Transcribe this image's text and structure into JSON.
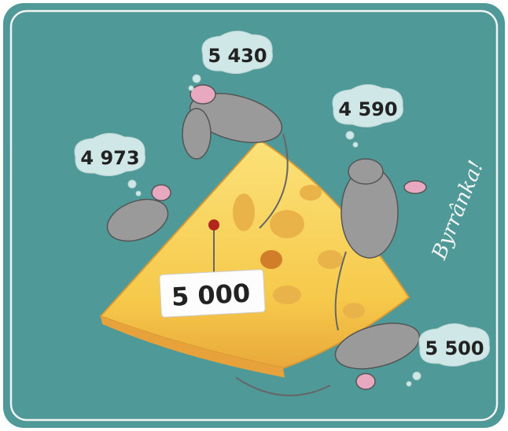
{
  "center_price": "5 000",
  "bubbles": [
    "5 430",
    "4 590",
    "4 973",
    "5 500"
  ],
  "exclamation": "Byrrânka!"
}
